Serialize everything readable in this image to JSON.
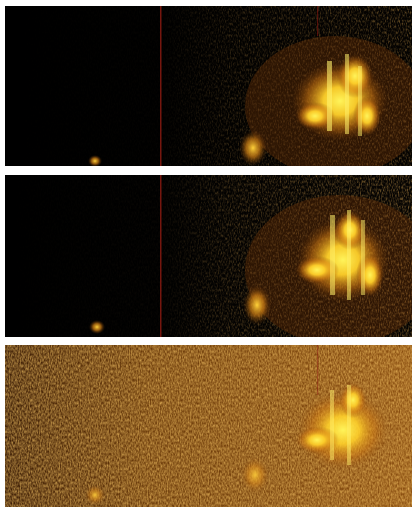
{
  "panels": [
    {
      "id": "panel-1",
      "tone": "dark",
      "base_color": "#050301"
    },
    {
      "id": "panel-2",
      "tone": "dark",
      "base_color": "#060402"
    },
    {
      "id": "panel-3",
      "tone": "amber",
      "base_color": "#6a3a0a"
    }
  ],
  "colors": {
    "hot": "#ffe84a",
    "warm": "#f2a81c",
    "amber": "#b86612",
    "deep": "#3a1a05",
    "red_line": "#8a1a10"
  }
}
